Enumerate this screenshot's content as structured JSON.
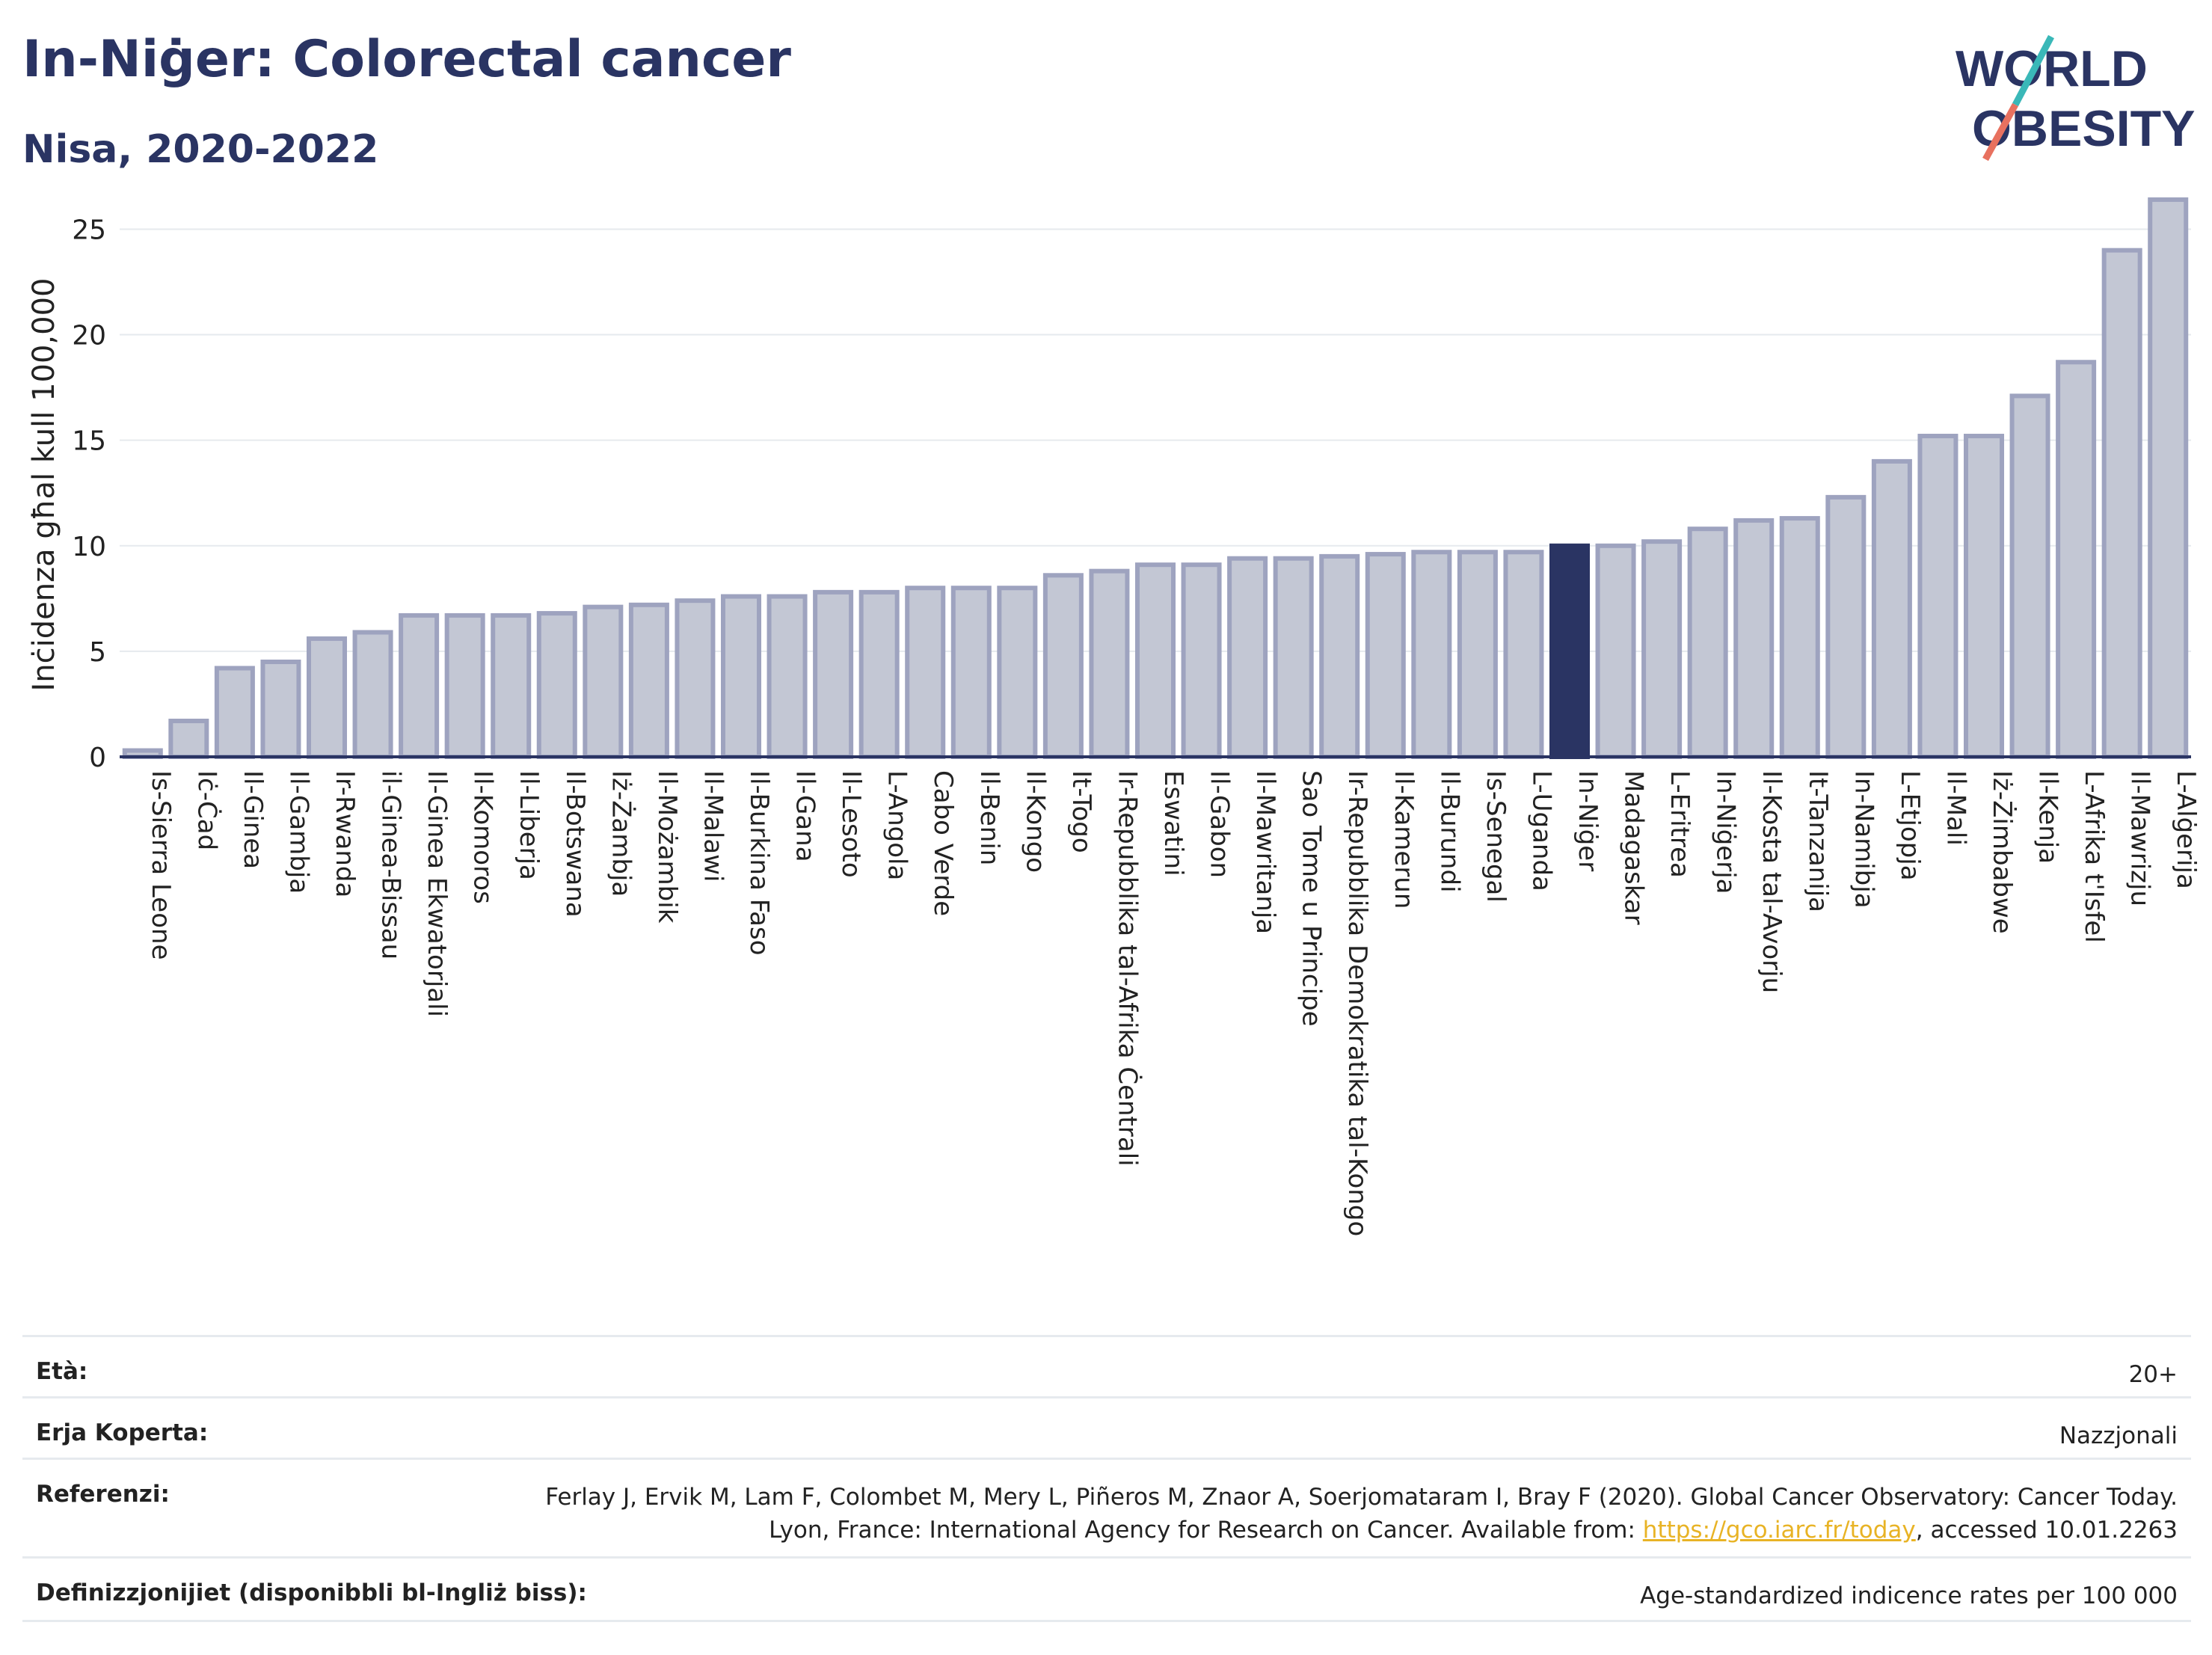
{
  "header": {
    "title": "In-Niġer: Colorectal cancer",
    "subtitle": "Nisa, 2020-2022"
  },
  "logo": {
    "line1": "WORLD",
    "line2": "OBESITY",
    "colors": {
      "teal": "#3ab8b8",
      "coral": "#e8715f",
      "navy": "#2a3463"
    }
  },
  "chart_data": {
    "type": "bar",
    "ylabel": "Inċidenza għal kull 100,000",
    "ylim": [
      0,
      27
    ],
    "yticks": [
      0,
      5,
      10,
      15,
      20,
      25
    ],
    "grid": true,
    "highlight": "In-Niġer",
    "colors": {
      "bar": "#c3c7d4",
      "bar_edge": "#9ea3bf",
      "highlight": "#2a3463"
    },
    "categories": [
      "Is-Sierra Leone",
      "Iċ-Ċad",
      "Il-Ginea",
      "Il-Gambja",
      "Ir-Rwanda",
      "il-Ginea-Bissau",
      "Il-Ginea Ekwatorjali",
      "Il-Komoros",
      "Il-Liberja",
      "Il-Botswana",
      "Iż-Żambja",
      "Il-Możambik",
      "Il-Malawi",
      "Il-Burkina Faso",
      "Il-Gana",
      "Il-Lesoto",
      "L-Angola",
      "Cabo Verde",
      "Il-Benin",
      "Il-Kongo",
      "It-Togo",
      "Ir-Repubblika tal-Afrika Ċentrali",
      "Eswatini",
      "Il-Gabon",
      "Il-Mawritanja",
      "Sao Tome u Principe",
      "Ir-Repubblika Demokratika tal-Kongo",
      "Il-Kamerun",
      "Il-Burundi",
      "Is-Senegal",
      "L-Uganda",
      "In-Niġer",
      "Madagaskar",
      "L-Eritrea",
      "In-Niġerja",
      "Il-Kosta tal-Avorju",
      "It-Tanzanija",
      "In-Namibja",
      "L-Etjopja",
      "Il-Mali",
      "Iż-Żimbabwe",
      "Il-Kenja",
      "L-Afrika t'Isfel",
      "Il-Mawrizju",
      "L-Alġerija"
    ],
    "values": [
      0.3,
      1.7,
      4.2,
      4.5,
      5.6,
      5.9,
      6.7,
      6.7,
      6.7,
      6.8,
      7.1,
      7.2,
      7.4,
      7.6,
      7.6,
      7.8,
      7.8,
      8.0,
      8.0,
      8.0,
      8.6,
      8.8,
      9.1,
      9.1,
      9.4,
      9.4,
      9.5,
      9.6,
      9.7,
      9.7,
      9.7,
      10.0,
      10.0,
      10.2,
      10.8,
      11.2,
      11.3,
      12.3,
      14.0,
      15.2,
      15.2,
      17.1,
      18.7,
      24.0,
      26.4
    ]
  },
  "meta": {
    "rows": [
      {
        "label": "Età:",
        "value": "20+"
      },
      {
        "label": "Erja Koperta:",
        "value": "Nazzjonali"
      },
      {
        "label": "Referenzi:",
        "value_pre": "Ferlay J, Ervik M, Lam F, Colombet M, Mery L, Piñeros M, Znaor A, Soerjomataram I, Bray F (2020). Global Cancer Observatory: Cancer Today. Lyon, France: International Agency for Research on Cancer. Available from: ",
        "link": "https://gco.iarc.fr/today",
        "value_post": ", accessed 10.01.2263"
      },
      {
        "label": "Definizzjonijiet (disponibbli bl-Ingliż biss):",
        "value": "Age-standardized indicence rates per 100 000"
      }
    ]
  }
}
